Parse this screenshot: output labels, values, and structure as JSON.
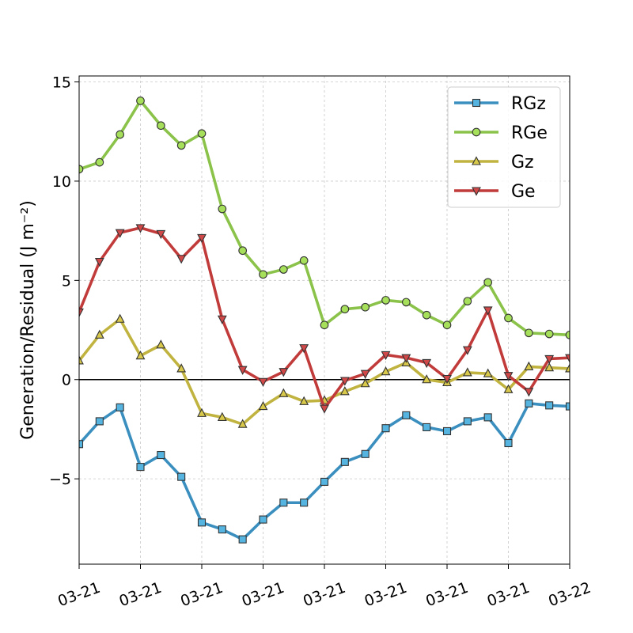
{
  "chart_data": {
    "type": "line",
    "title": "",
    "xlabel": "",
    "ylabel": "Generation/Residual (J m⁻²)",
    "ylim": [
      -9.3,
      15.3
    ],
    "yticks": [
      -5,
      0,
      5,
      10,
      15
    ],
    "ytick_labels": [
      "−5",
      "0",
      "5",
      "10",
      "15"
    ],
    "xticks": [
      0,
      3,
      6,
      9,
      12,
      15,
      18,
      21,
      24
    ],
    "xtick_labels": [
      "03-21",
      "03-21",
      "03-21",
      "03-21",
      "03-21",
      "03-21",
      "03-21",
      "03-21",
      "03-22"
    ],
    "xlim": [
      0,
      24
    ],
    "x": [
      0,
      1,
      2,
      3,
      4,
      5,
      6,
      7,
      8,
      9,
      10,
      11,
      12,
      13,
      14,
      15,
      16,
      17,
      18,
      19,
      20,
      21,
      22,
      23,
      24
    ],
    "grid": true,
    "zero_line": true,
    "legend_position": "top-right",
    "series": [
      {
        "name": "RGz",
        "color": "#3a8fbf",
        "marker_fill": "#55b4e0",
        "marker": "square",
        "values": [
          -3.25,
          -2.1,
          -1.4,
          -4.4,
          -3.8,
          -4.9,
          -7.2,
          -7.55,
          -8.05,
          -7.05,
          -6.2,
          -6.2,
          -5.15,
          -4.15,
          -3.75,
          -2.45,
          -1.8,
          -2.4,
          -2.6,
          -2.1,
          -1.9,
          -3.2,
          -1.2,
          -1.3,
          -1.35
        ]
      },
      {
        "name": "RGe",
        "color": "#8bc34a",
        "marker_fill": "#a6e05a",
        "marker": "circle",
        "values": [
          10.6,
          10.95,
          12.35,
          14.05,
          12.8,
          11.8,
          12.4,
          8.6,
          6.5,
          5.3,
          5.55,
          6.0,
          2.75,
          3.55,
          3.65,
          4.0,
          3.9,
          3.25,
          2.75,
          3.95,
          4.9,
          3.1,
          2.35,
          2.3,
          2.25
        ]
      },
      {
        "name": "Gz",
        "color": "#c1b340",
        "marker_fill": "#d9c94a",
        "marker": "triangle-up",
        "values": [
          0.95,
          2.25,
          3.05,
          1.2,
          1.75,
          0.55,
          -1.7,
          -1.9,
          -2.25,
          -1.35,
          -0.7,
          -1.1,
          -1.05,
          -0.6,
          -0.2,
          0.4,
          0.85,
          0.0,
          -0.15,
          0.35,
          0.3,
          -0.5,
          0.65,
          0.6,
          0.55
        ]
      },
      {
        "name": "Ge",
        "color": "#c13b3b",
        "marker_fill": "#d04848",
        "marker": "triangle-down",
        "values": [
          3.4,
          5.95,
          7.4,
          7.65,
          7.35,
          6.1,
          7.15,
          3.05,
          0.5,
          -0.1,
          0.4,
          1.6,
          -1.45,
          -0.05,
          0.3,
          1.25,
          1.1,
          0.85,
          0.05,
          1.5,
          3.5,
          0.2,
          -0.6,
          1.05,
          1.1
        ]
      }
    ]
  }
}
